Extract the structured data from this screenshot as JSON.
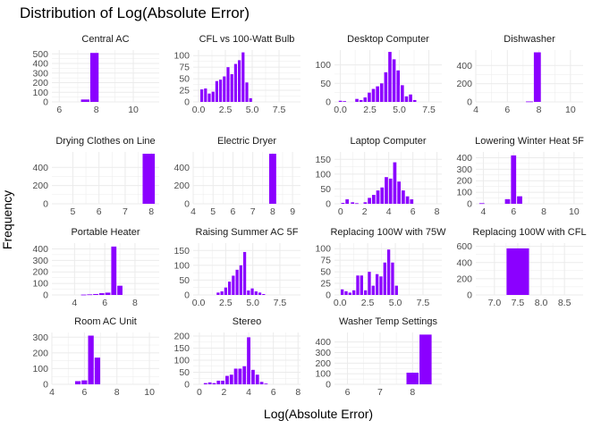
{
  "title": "Distribution of Log(Absolute Error)",
  "xlabel": "Log(Absolute Error)",
  "ylabel": "Frequency",
  "bar_color": "#8B00FF",
  "grid_color": "#ebebeb",
  "chart_data": [
    {
      "type": "bar",
      "subtitle": "Central AC",
      "xlim": [
        5.6,
        11.4
      ],
      "ylim": [
        0,
        540
      ],
      "xticks": [
        6,
        8,
        10
      ],
      "yticks": [
        0,
        100,
        200,
        300,
        400,
        500
      ],
      "binwidth": 0.5,
      "x": [
        7.4,
        7.9
      ],
      "values": [
        25,
        510
      ]
    },
    {
      "type": "bar",
      "subtitle": "CFL vs 100-Watt Bulb",
      "xlim": [
        -0.5,
        9.5
      ],
      "ylim": [
        0,
        112
      ],
      "xticks": [
        0.0,
        2.5,
        5.0,
        7.5
      ],
      "yticks": [
        0,
        25,
        50,
        75,
        100
      ],
      "binwidth": 0.35,
      "x": [
        0.3,
        0.65,
        1.0,
        1.35,
        1.7,
        2.05,
        2.4,
        2.75,
        3.1,
        3.45,
        3.8,
        4.15,
        4.5,
        4.85
      ],
      "values": [
        27,
        29,
        18,
        22,
        45,
        48,
        55,
        75,
        60,
        82,
        90,
        107,
        42,
        8
      ]
    },
    {
      "type": "bar",
      "subtitle": "Desktop Computer",
      "xlim": [
        -0.5,
        8.6
      ],
      "ylim": [
        0,
        140
      ],
      "xticks": [
        0.0,
        2.5,
        5.0,
        7.5
      ],
      "yticks": [
        0,
        50,
        100
      ],
      "binwidth": 0.35,
      "x": [
        0.0,
        0.35,
        1.4,
        1.75,
        2.1,
        2.45,
        2.8,
        3.15,
        3.5,
        3.85,
        4.2,
        4.55,
        4.9,
        5.25,
        5.6,
        5.95,
        6.3
      ],
      "values": [
        3,
        2,
        8,
        5,
        12,
        25,
        35,
        42,
        50,
        80,
        135,
        115,
        85,
        45,
        15,
        20,
        5
      ]
    },
    {
      "type": "bar",
      "subtitle": "Dishwasher",
      "xlim": [
        4,
        10.8
      ],
      "ylim": [
        0,
        570
      ],
      "xticks": [
        4,
        6,
        8,
        10
      ],
      "yticks": [
        0,
        200,
        400
      ],
      "binwidth": 0.5,
      "x": [
        7.4,
        7.9
      ],
      "values": [
        5,
        545
      ]
    },
    {
      "type": "bar",
      "subtitle": "Drying Clothes on Line",
      "xlim": [
        4.2,
        8.3
      ],
      "ylim": [
        0,
        570
      ],
      "xticks": [
        5,
        6,
        7,
        8
      ],
      "yticks": [
        0,
        200,
        400
      ],
      "binwidth": 0.5,
      "x": [
        7.9
      ],
      "values": [
        550
      ]
    },
    {
      "type": "bar",
      "subtitle": "Electric Dryer",
      "xlim": [
        4,
        9.4
      ],
      "ylim": [
        0,
        570
      ],
      "xticks": [
        4,
        5,
        6,
        7,
        8,
        9
      ],
      "yticks": [
        0,
        200,
        400
      ],
      "binwidth": 0.4,
      "x": [
        8.0
      ],
      "values": [
        550
      ]
    },
    {
      "type": "bar",
      "subtitle": "Laptop Computer",
      "xlim": [
        -0.5,
        8.4
      ],
      "ylim": [
        0,
        175
      ],
      "xticks": [
        0,
        2,
        4,
        6,
        8
      ],
      "yticks": [
        0,
        50,
        100,
        150
      ],
      "binwidth": 0.35,
      "x": [
        0.2,
        0.55,
        1.0,
        1.35,
        2.05,
        2.4,
        2.75,
        3.1,
        3.45,
        3.8,
        4.15,
        4.5,
        4.85,
        5.2,
        5.55,
        5.9
      ],
      "values": [
        3,
        15,
        5,
        2,
        5,
        20,
        30,
        45,
        55,
        90,
        85,
        140,
        75,
        45,
        25,
        15
      ]
    },
    {
      "type": "bar",
      "subtitle": "Lowering Winter Heat 5F",
      "xlim": [
        3.5,
        10.6
      ],
      "ylim": [
        0,
        450
      ],
      "xticks": [
        4,
        6,
        8,
        10
      ],
      "yticks": [
        0,
        100,
        200,
        300,
        400
      ],
      "binwidth": 0.4,
      "x": [
        3.9,
        5.6,
        6.0,
        6.4
      ],
      "values": [
        5,
        40,
        420,
        65
      ]
    },
    {
      "type": "bar",
      "subtitle": "Portable Heater",
      "xlim": [
        2.5,
        9.6
      ],
      "ylim": [
        0,
        450
      ],
      "xticks": [
        4,
        6,
        8
      ],
      "yticks": [
        0,
        100,
        200,
        300,
        400
      ],
      "binwidth": 0.4,
      "x": [
        4.6,
        5.0,
        5.4,
        5.8,
        6.2,
        6.6,
        7.0
      ],
      "values": [
        3,
        5,
        8,
        15,
        20,
        420,
        80
      ]
    },
    {
      "type": "bar",
      "subtitle": "Raising Summer AC 5F",
      "xlim": [
        -0.5,
        9.4
      ],
      "ylim": [
        0,
        175
      ],
      "xticks": [
        0.0,
        2.5,
        5.0,
        7.5
      ],
      "yticks": [
        0,
        50,
        100,
        150
      ],
      "binwidth": 0.35,
      "x": [
        1.8,
        2.15,
        2.5,
        2.85,
        3.2,
        3.55,
        3.9,
        4.25,
        4.6,
        4.95,
        5.3,
        5.65,
        6.0
      ],
      "values": [
        8,
        12,
        25,
        45,
        65,
        85,
        100,
        145,
        15,
        22,
        12,
        8,
        3
      ]
    },
    {
      "type": "bar",
      "subtitle": "Replacing 100W with 75W",
      "xlim": [
        -0.5,
        9.2
      ],
      "ylim": [
        0,
        112
      ],
      "xticks": [
        0.0,
        2.5,
        5.0,
        7.5
      ],
      "yticks": [
        0,
        25,
        50,
        75,
        100
      ],
      "binwidth": 0.35,
      "x": [
        0.2,
        0.55,
        0.9,
        1.25,
        1.6,
        1.95,
        2.3,
        2.65,
        3.0,
        3.35,
        3.7,
        4.05,
        4.4,
        4.75,
        5.1
      ],
      "values": [
        12,
        8,
        5,
        10,
        42,
        42,
        10,
        50,
        20,
        45,
        40,
        70,
        98,
        70,
        20
      ]
    },
    {
      "type": "bar",
      "subtitle": "Replacing 100W with CFL",
      "xlim": [
        6.6,
        8.9
      ],
      "ylim": [
        0,
        640
      ],
      "xticks": [
        7.0,
        7.5,
        8.0,
        8.5
      ],
      "yticks": [
        0,
        200,
        400,
        600
      ],
      "binwidth": 0.5,
      "x": [
        7.5
      ],
      "values": [
        575
      ]
    },
    {
      "type": "bar",
      "subtitle": "Room AC Unit",
      "xlim": [
        4,
        10.6
      ],
      "ylim": [
        0,
        330
      ],
      "xticks": [
        4,
        6,
        8,
        10
      ],
      "yticks": [
        0,
        100,
        200,
        300
      ],
      "binwidth": 0.4,
      "x": [
        5.6,
        6.0,
        6.4,
        6.8
      ],
      "values": [
        20,
        25,
        310,
        170
      ]
    },
    {
      "type": "bar",
      "subtitle": "Stereo",
      "xlim": [
        -0.5,
        8.2
      ],
      "ylim": [
        0,
        215
      ],
      "xticks": [
        0,
        2,
        4,
        6,
        8
      ],
      "yticks": [
        0,
        50,
        100,
        150,
        200
      ],
      "binwidth": 0.35,
      "x": [
        0.5,
        0.85,
        1.2,
        1.55,
        1.9,
        2.25,
        2.6,
        2.95,
        3.3,
        3.65,
        4.0,
        4.35,
        4.7,
        5.05,
        5.4
      ],
      "values": [
        5,
        8,
        5,
        15,
        15,
        35,
        40,
        65,
        65,
        75,
        195,
        60,
        40,
        10,
        3
      ]
    },
    {
      "type": "bar",
      "subtitle": "Washer Temp Settings",
      "xlim": [
        5.6,
        8.9
      ],
      "ylim": [
        0,
        490
      ],
      "xticks": [
        6,
        7,
        8
      ],
      "yticks": [
        0,
        100,
        200,
        300,
        400
      ],
      "binwidth": 0.4,
      "x": [
        8.0,
        8.4
      ],
      "values": [
        110,
        470
      ]
    }
  ]
}
